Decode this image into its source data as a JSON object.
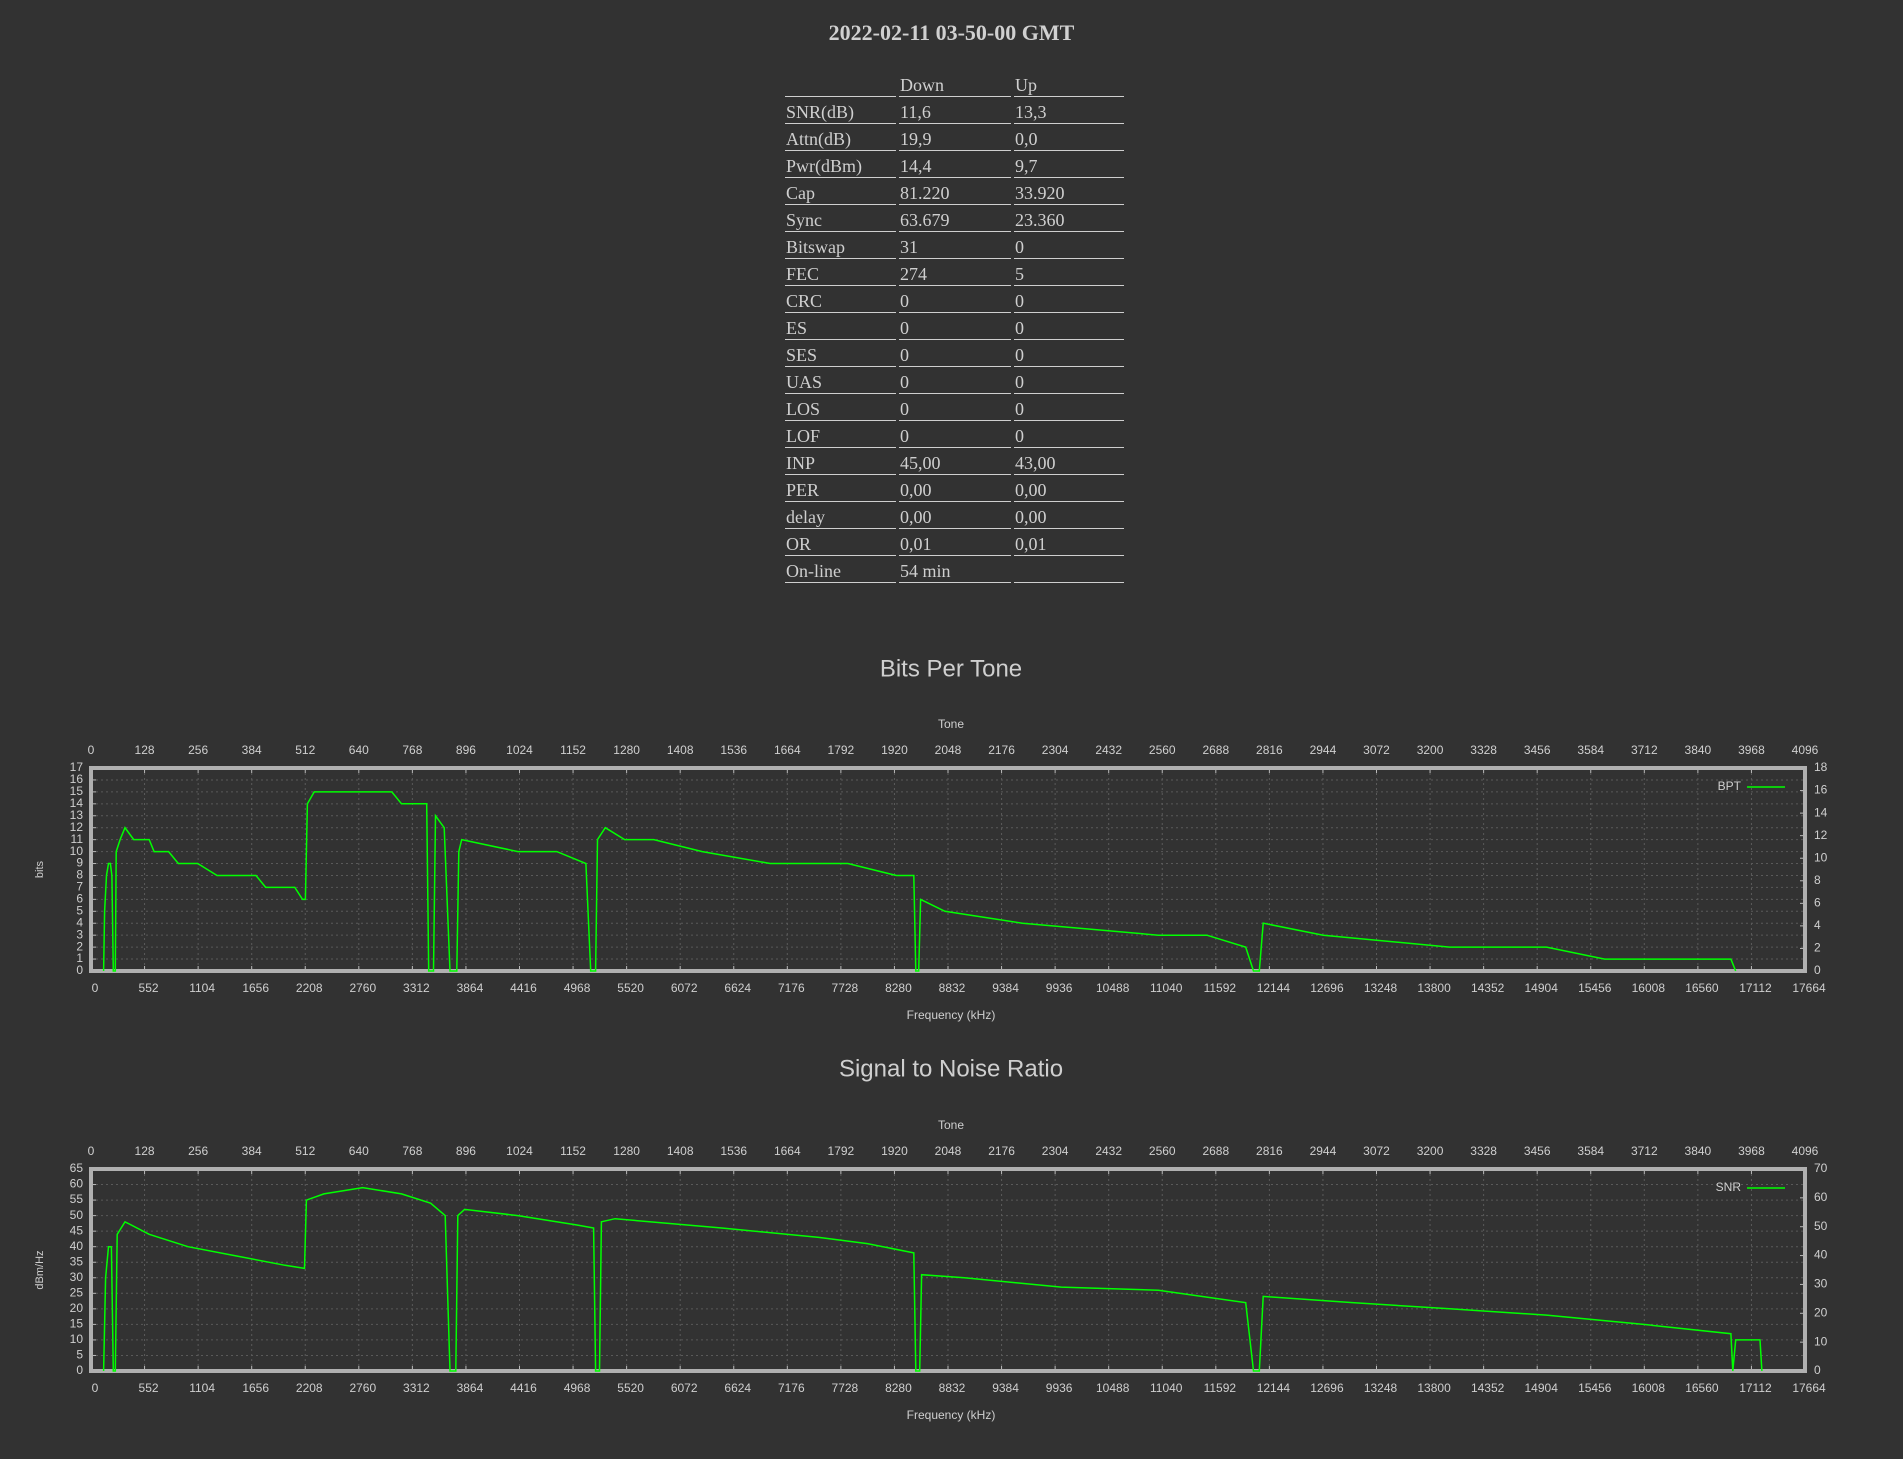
{
  "title": "2022-02-11 03-50-00 GMT",
  "table": {
    "header": [
      "Down",
      "Up"
    ],
    "rows": [
      [
        "SNR(dB)",
        "11,6",
        "13,3"
      ],
      [
        "Attn(dB)",
        "19,9",
        "0,0"
      ],
      [
        "Pwr(dBm)",
        "14,4",
        "9,7"
      ],
      [
        "Cap",
        "81.220",
        "33.920"
      ],
      [
        "Sync",
        "63.679",
        "23.360"
      ],
      [
        "Bitswap",
        "31",
        "0"
      ],
      [
        "FEC",
        "274",
        "5"
      ],
      [
        "CRC",
        "0",
        "0"
      ],
      [
        "ES",
        "0",
        "0"
      ],
      [
        "SES",
        "0",
        "0"
      ],
      [
        "UAS",
        "0",
        "0"
      ],
      [
        "LOS",
        "0",
        "0"
      ],
      [
        "LOF",
        "0",
        "0"
      ],
      [
        "INP",
        "45,00",
        "43,00"
      ],
      [
        "PER",
        "0,00",
        "0,00"
      ],
      [
        "delay",
        "0,00",
        "0,00"
      ],
      [
        "OR",
        "0,01",
        "0,01"
      ],
      [
        "On-line",
        "54 min"
      ]
    ]
  },
  "chart_data": [
    {
      "type": "line",
      "title": "Bits Per Tone",
      "x2label": "Tone",
      "xlabel": "Frequency (kHz)",
      "ylabel": "bits",
      "x": [
        130,
        140,
        160,
        180,
        200,
        215,
        230,
        250,
        260,
        300,
        350,
        440,
        600,
        650,
        800,
        900,
        1100,
        1300,
        1700,
        1800,
        2100,
        2180,
        2210,
        2230,
        2300,
        2700,
        3100,
        3200,
        3460,
        3480,
        3530,
        3550,
        3640,
        3700,
        3770,
        3790,
        3820,
        4400,
        4800,
        5100,
        5150,
        5200,
        5220,
        5300,
        5500,
        5800,
        6300,
        7000,
        7800,
        8300,
        8480,
        8500,
        8530,
        8550,
        8800,
        9600,
        11000,
        11500,
        11900,
        11980,
        12040,
        12080,
        12700,
        14000,
        15000,
        15600,
        16900,
        16950
      ],
      "series": [
        {
          "name": "BPT",
          "color": "#00ff00",
          "values": [
            0,
            5,
            8,
            9,
            9,
            8,
            0,
            0,
            10,
            11,
            12,
            11,
            11,
            10,
            10,
            9,
            9,
            8,
            8,
            7,
            7,
            6,
            6,
            14,
            15,
            15,
            15,
            14,
            14,
            0,
            0,
            13,
            12,
            0,
            0,
            10,
            11,
            10,
            10,
            9,
            0,
            0,
            11,
            12,
            11,
            11,
            10,
            9,
            9,
            8,
            8,
            0,
            0,
            6,
            5,
            4,
            3,
            3,
            2,
            0,
            0,
            4,
            3,
            2,
            2,
            1,
            1,
            0
          ]
        }
      ],
      "xlim": [
        0,
        17664
      ],
      "xticks": [
        0,
        552,
        1104,
        1656,
        2208,
        2760,
        3312,
        3864,
        4416,
        4968,
        5520,
        6072,
        6624,
        7176,
        7728,
        8280,
        8832,
        9384,
        9936,
        10488,
        11040,
        11592,
        12144,
        12696,
        13248,
        13800,
        14352,
        14904,
        15456,
        16008,
        16560,
        17112,
        17664
      ],
      "x2lim": [
        0,
        4096
      ],
      "x2ticks": [
        0,
        128,
        256,
        384,
        512,
        640,
        768,
        896,
        1024,
        1152,
        1280,
        1408,
        1536,
        1664,
        1792,
        1920,
        2048,
        2176,
        2304,
        2432,
        2560,
        2688,
        2816,
        2944,
        3072,
        3200,
        3328,
        3456,
        3584,
        3712,
        3840,
        3968,
        4096
      ],
      "ylim": [
        0,
        17
      ],
      "yticks": [
        0,
        1,
        2,
        3,
        4,
        5,
        6,
        7,
        8,
        9,
        10,
        11,
        12,
        13,
        14,
        15,
        16,
        17
      ],
      "y2lim": [
        0,
        18
      ],
      "y2ticks": [
        0,
        2,
        4,
        6,
        8,
        10,
        12,
        14,
        16,
        18
      ],
      "grid": true,
      "legend": "upper right"
    },
    {
      "type": "line",
      "title": "Signal to Noise Ratio",
      "x2label": "Tone",
      "xlabel": "Frequency (kHz)",
      "ylabel": "dBm/Hz",
      "x": [
        130,
        150,
        180,
        210,
        230,
        250,
        270,
        350,
        600,
        1000,
        1500,
        2000,
        2200,
        2220,
        2400,
        2800,
        3200,
        3500,
        3650,
        3700,
        3760,
        3780,
        3850,
        4400,
        5000,
        5180,
        5200,
        5240,
        5260,
        5400,
        6500,
        7500,
        8000,
        8480,
        8500,
        8540,
        8560,
        9000,
        10000,
        11000,
        11900,
        11980,
        12040,
        12080,
        13000,
        14000,
        15000,
        16000,
        16900,
        16920,
        16950,
        17200,
        17220
      ],
      "series": [
        {
          "name": "SNR",
          "color": "#00ff00",
          "values": [
            0,
            30,
            40,
            40,
            0,
            0,
            44,
            48,
            44,
            40,
            37,
            34,
            33,
            55,
            57,
            59,
            57,
            54,
            50,
            0,
            0,
            50,
            52,
            50,
            47,
            46,
            0,
            0,
            48,
            49,
            46,
            43,
            41,
            38,
            0,
            0,
            31,
            30,
            27,
            26,
            22,
            0,
            0,
            24,
            22,
            20,
            18,
            15,
            12,
            0,
            10,
            10,
            0
          ]
        }
      ],
      "xlim": [
        0,
        17664
      ],
      "xticks": [
        0,
        552,
        1104,
        1656,
        2208,
        2760,
        3312,
        3864,
        4416,
        4968,
        5520,
        6072,
        6624,
        7176,
        7728,
        8280,
        8832,
        9384,
        9936,
        10488,
        11040,
        11592,
        12144,
        12696,
        13248,
        13800,
        14352,
        14904,
        15456,
        16008,
        16560,
        17112,
        17664
      ],
      "x2lim": [
        0,
        4096
      ],
      "x2ticks": [
        0,
        128,
        256,
        384,
        512,
        640,
        768,
        896,
        1024,
        1152,
        1280,
        1408,
        1536,
        1664,
        1792,
        1920,
        2048,
        2176,
        2304,
        2432,
        2560,
        2688,
        2816,
        2944,
        3072,
        3200,
        3328,
        3456,
        3584,
        3712,
        3840,
        3968,
        4096
      ],
      "ylim": [
        0,
        65
      ],
      "yticks": [
        0,
        5,
        10,
        15,
        20,
        25,
        30,
        35,
        40,
        45,
        50,
        55,
        60,
        65
      ],
      "y2lim": [
        0,
        70
      ],
      "y2ticks": [
        0,
        10,
        20,
        30,
        40,
        50,
        60,
        70
      ],
      "grid": true,
      "legend": "upper right"
    }
  ]
}
